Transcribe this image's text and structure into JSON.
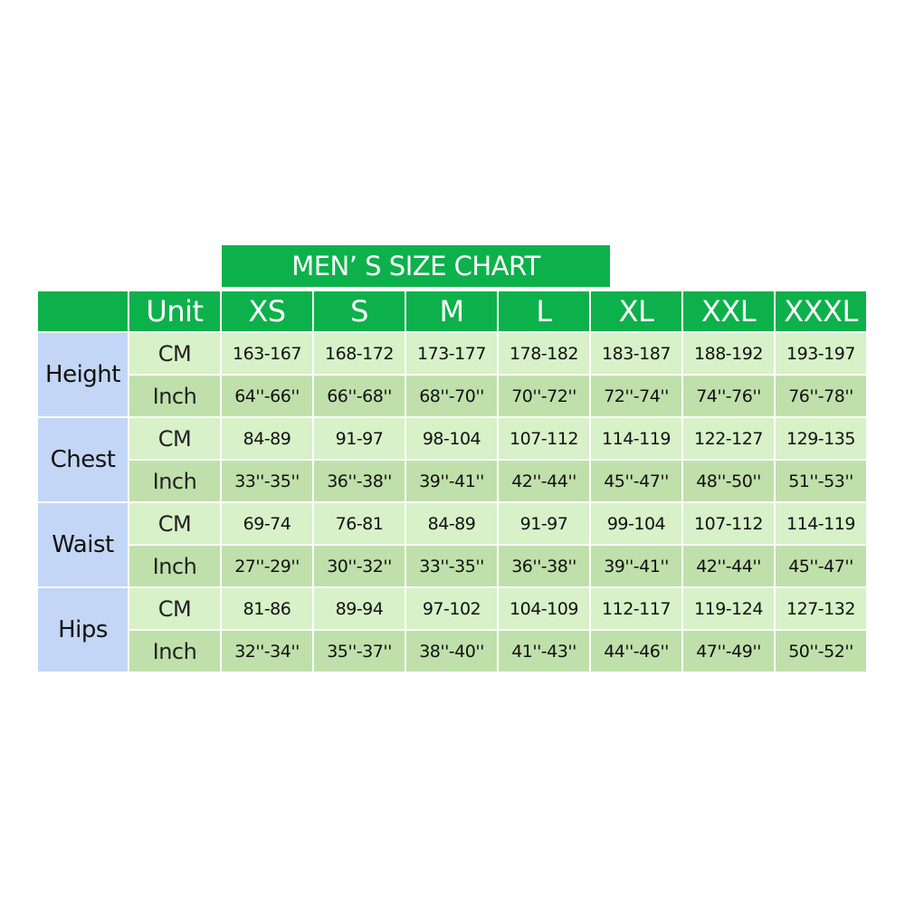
{
  "chart_data": {
    "type": "table",
    "title": "MEN’ S SIZE CHART",
    "unit_header": "Unit",
    "sizes": [
      "XS",
      "S",
      "M",
      "L",
      "XL",
      "XXL",
      "XXXL"
    ],
    "rows": [
      {
        "measure": "Height",
        "units": [
          {
            "unit": "CM",
            "values": [
              "163-167",
              "168-172",
              "173-177",
              "178-182",
              "183-187",
              "188-192",
              "193-197"
            ]
          },
          {
            "unit": "Inch",
            "values": [
              "64''-66''",
              "66''-68''",
              "68''-70''",
              "70''-72''",
              "72''-74''",
              "74''-76''",
              "76''-78''"
            ]
          }
        ]
      },
      {
        "measure": "Chest",
        "units": [
          {
            "unit": "CM",
            "values": [
              "84-89",
              "91-97",
              "98-104",
              "107-112",
              "114-119",
              "122-127",
              "129-135"
            ]
          },
          {
            "unit": "Inch",
            "values": [
              "33''-35''",
              "36''-38''",
              "39''-41''",
              "42''-44''",
              "45''-47''",
              "48''-50''",
              "51''-53''"
            ]
          }
        ]
      },
      {
        "measure": "Waist",
        "units": [
          {
            "unit": "CM",
            "values": [
              "69-74",
              "76-81",
              "84-89",
              "91-97",
              "99-104",
              "107-112",
              "114-119"
            ]
          },
          {
            "unit": "Inch",
            "values": [
              "27''-29''",
              "30''-32''",
              "33''-35''",
              "36''-38''",
              "39''-41''",
              "42''-44''",
              "45''-47''"
            ]
          }
        ]
      },
      {
        "measure": "Hips",
        "units": [
          {
            "unit": "CM",
            "values": [
              "81-86",
              "89-94",
              "97-102",
              "104-109",
              "112-117",
              "119-124",
              "127-132"
            ]
          },
          {
            "unit": "Inch",
            "values": [
              "32''-34''",
              "35''-37''",
              "38''-40''",
              "41''-43''",
              "44''-46''",
              "47''-49''",
              "50''-52''"
            ]
          }
        ]
      }
    ],
    "colors": {
      "header": "#0db14b",
      "measure": "#c3d6f5",
      "cm_row": "#d8f1c8",
      "inch_row": "#bfe0aa"
    }
  }
}
